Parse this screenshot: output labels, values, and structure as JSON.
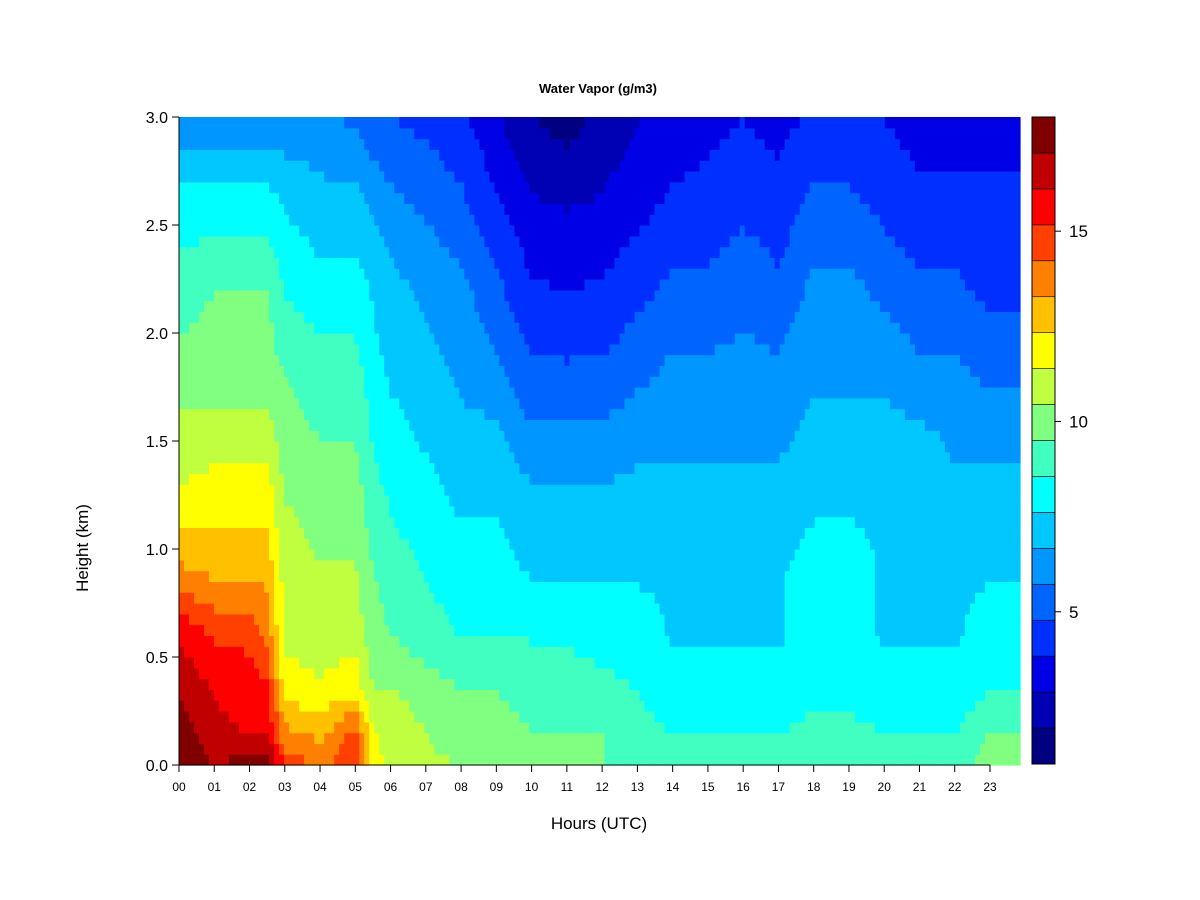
{
  "chart_data": {
    "type": "heatmap",
    "title": "Water Vapor (g/m3)",
    "xlabel": "Hours (UTC)",
    "ylabel": "Height (km)",
    "x_tick_labels": [
      "00",
      "01",
      "02",
      "03",
      "04",
      "05",
      "06",
      "07",
      "08",
      "09",
      "10",
      "11",
      "12",
      "13",
      "14",
      "15",
      "16",
      "17",
      "18",
      "19",
      "20",
      "21",
      "22",
      "23"
    ],
    "x_range": [
      0,
      24
    ],
    "ylim": [
      0,
      3.0
    ],
    "y_ticks": [
      0.0,
      0.5,
      1.0,
      1.5,
      2.0,
      2.5,
      3.0
    ],
    "y_tick_labels": [
      "0.0",
      "0.5",
      "1.0",
      "1.5",
      "2.0",
      "2.5",
      "3.0"
    ],
    "colorbar": {
      "range": [
        1,
        18
      ],
      "ticks": [
        5,
        10,
        15
      ],
      "tick_labels": [
        "5",
        "10",
        "15"
      ],
      "colors": [
        "#000080",
        "#0000B4",
        "#0000E6",
        "#0030FF",
        "#0064FF",
        "#0096FF",
        "#00C8FF",
        "#00FFFF",
        "#40FFC0",
        "#80FF80",
        "#C0FF40",
        "#FFFF00",
        "#FFC000",
        "#FF8000",
        "#FF4000",
        "#FF0000",
        "#C00000",
        "#800000"
      ]
    },
    "height_km": [
      0.0,
      0.25,
      0.5,
      1.0,
      1.5,
      2.0,
      2.5,
      3.0
    ],
    "hours": [
      0,
      1,
      2,
      2.5,
      3,
      4,
      5,
      5.5,
      6,
      7,
      8,
      9,
      10,
      11,
      12,
      13,
      14,
      15,
      16,
      17,
      18,
      19,
      20,
      21,
      22,
      23,
      24
    ],
    "values": [
      [
        18.0,
        17.5,
        17.0,
        16.0,
        13.5,
        11.5,
        11.0,
        10.0,
        9.0,
        8.0,
        6.0
      ],
      [
        17.0,
        16.5,
        16.0,
        15.0,
        13.0,
        12.0,
        11.0,
        10.0,
        9.5,
        8.0,
        6.0
      ],
      [
        17.5,
        16.0,
        15.5,
        15.0,
        13.0,
        12.0,
        11.0,
        10.0,
        9.5,
        8.0,
        6.0
      ],
      [
        17.5,
        16.0,
        15.5,
        14.0,
        13.0,
        12.0,
        11.0,
        10.0,
        9.5,
        8.0,
        6.0
      ],
      [
        15.0,
        13.5,
        12.0,
        11.0,
        11.0,
        10.5,
        10.0,
        9.5,
        8.5,
        7.5,
        6.0
      ],
      [
        14.0,
        13.0,
        11.5,
        11.0,
        10.5,
        10.0,
        9.5,
        9.0,
        8.0,
        7.0,
        6.0
      ],
      [
        15.0,
        14.5,
        12.0,
        11.0,
        10.5,
        10.0,
        9.5,
        9.0,
        8.0,
        7.0,
        5.5
      ],
      [
        12.0,
        11.5,
        10.5,
        10.0,
        9.5,
        9.0,
        8.5,
        8.0,
        7.5,
        6.5,
        5.0
      ],
      [
        11.0,
        11.0,
        10.5,
        9.5,
        9.0,
        8.5,
        8.0,
        7.5,
        7.0,
        6.0,
        4.8
      ],
      [
        10.5,
        10.5,
        10.0,
        9.0,
        8.5,
        8.0,
        7.5,
        7.0,
        6.5,
        5.5,
        4.5
      ],
      [
        10.5,
        10.0,
        9.5,
        8.5,
        8.0,
        7.5,
        7.0,
        6.5,
        6.0,
        5.0,
        4.0
      ],
      [
        10.0,
        10.0,
        9.5,
        8.5,
        8.0,
        7.5,
        7.0,
        6.0,
        5.0,
        4.0,
        3.0
      ],
      [
        10.0,
        9.5,
        9.0,
        8.5,
        7.5,
        7.0,
        6.0,
        5.0,
        4.0,
        3.0,
        2.0
      ],
      [
        10.0,
        9.5,
        9.0,
        8.5,
        7.5,
        7.0,
        6.0,
        5.0,
        3.8,
        2.8,
        1.5
      ],
      [
        9.5,
        9.5,
        9.0,
        8.0,
        7.5,
        7.0,
        6.0,
        5.0,
        4.0,
        3.0,
        2.2
      ],
      [
        9.0,
        9.0,
        8.5,
        8.0,
        7.5,
        7.0,
        6.5,
        5.5,
        4.5,
        3.5,
        2.8
      ],
      [
        9.0,
        8.5,
        8.0,
        7.5,
        7.5,
        7.0,
        6.5,
        6.0,
        5.0,
        4.0,
        3.2
      ],
      [
        9.0,
        8.5,
        8.0,
        7.5,
        7.5,
        7.0,
        6.5,
        6.0,
        5.0,
        4.2,
        3.5
      ],
      [
        9.0,
        8.5,
        8.0,
        7.5,
        7.5,
        7.0,
        6.5,
        6.0,
        5.5,
        4.5,
        3.8
      ],
      [
        9.0,
        8.5,
        8.0,
        7.5,
        7.5,
        7.0,
        6.5,
        6.0,
        5.0,
        4.2,
        3.5
      ],
      [
        9.5,
        9.0,
        8.0,
        8.0,
        8.0,
        7.5,
        7.0,
        6.5,
        6.0,
        5.0,
        4.0
      ],
      [
        9.0,
        9.0,
        8.0,
        8.0,
        8.0,
        7.5,
        7.0,
        6.5,
        6.0,
        5.0,
        4.0
      ],
      [
        9.0,
        8.5,
        8.0,
        7.5,
        7.5,
        7.5,
        7.0,
        6.5,
        5.5,
        4.5,
        3.8
      ],
      [
        9.0,
        8.5,
        8.0,
        7.5,
        7.5,
        7.0,
        7.0,
        6.0,
        5.0,
        4.0,
        3.5
      ],
      [
        9.0,
        8.5,
        8.0,
        7.5,
        7.5,
        7.0,
        6.5,
        6.0,
        5.0,
        4.0,
        3.5
      ],
      [
        10.0,
        9.5,
        8.5,
        8.0,
        7.5,
        7.0,
        6.5,
        5.5,
        4.5,
        4.0,
        3.5
      ],
      [
        10.0,
        9.5,
        8.5,
        8.0,
        7.5,
        7.0,
        6.5,
        5.5,
        4.5,
        4.0,
        3.5
      ]
    ],
    "values_heights_km": [
      0.0,
      0.15,
      0.35,
      0.6,
      0.9,
      1.2,
      1.5,
      1.8,
      2.2,
      2.6,
      3.0
    ]
  }
}
